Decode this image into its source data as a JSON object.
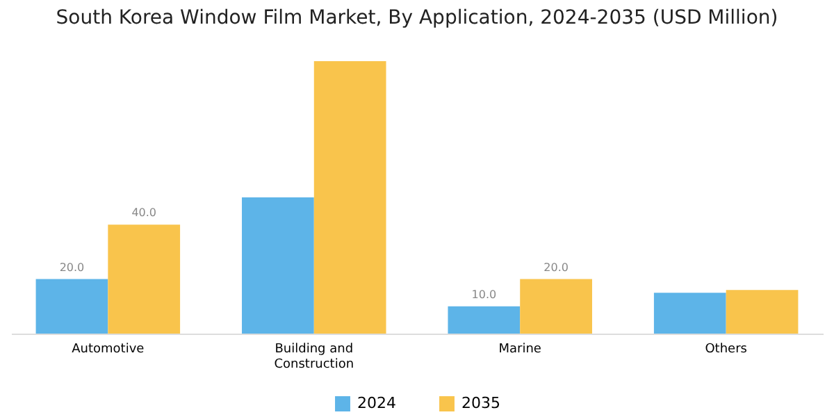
{
  "chart_data": {
    "type": "bar",
    "title": "South Korea Window Film Market, By Application, 2024-2035 (USD Million)",
    "categories": [
      "Automotive",
      "Building and Construction",
      "Marine",
      "Others"
    ],
    "series": [
      {
        "name": "2024",
        "color": "#5db4e8",
        "values": [
          20,
          50,
          10,
          15
        ],
        "value_labels": [
          "20.0",
          null,
          "10.0",
          null
        ]
      },
      {
        "name": "2035",
        "color": "#f9c44c",
        "values": [
          40,
          100,
          20,
          16
        ],
        "value_labels": [
          "40.0",
          null,
          "20.0",
          null
        ]
      }
    ],
    "legend": "bottom"
  }
}
